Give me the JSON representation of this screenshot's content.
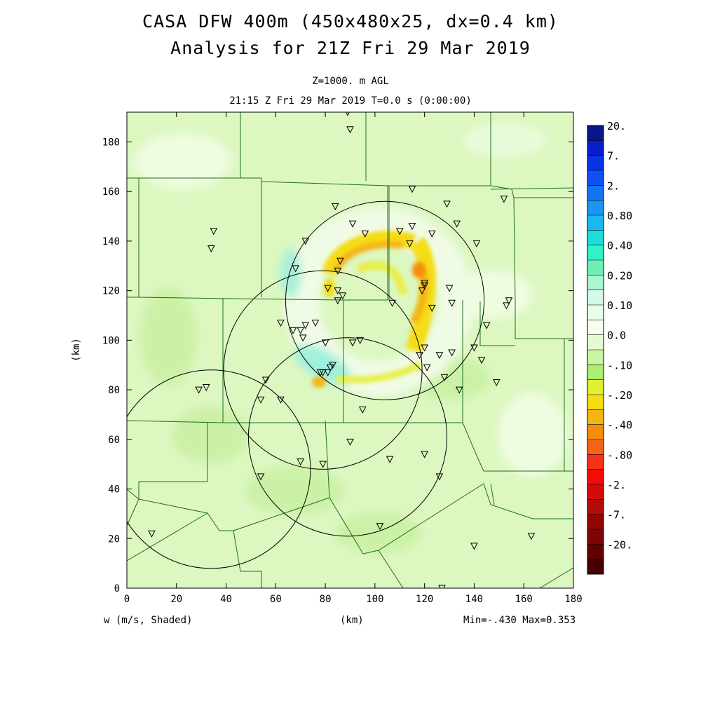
{
  "titles": {
    "line1": "CASA DFW 400m (450x480x25, dx=0.4 km)",
    "line2": "Analysis for 21Z Fri 29 Mar 2019",
    "level": "Z=1000. m AGL",
    "time": "21:15 Z Fri 29 Mar 2019    T=0.0 s (0:00:00)"
  },
  "footer": {
    "field_label": "w (m/s, Shaded)",
    "min_max": "Min=-.430 Max=0.353"
  },
  "chart_data": {
    "type": "heatmap",
    "field": "w",
    "units": "m/s",
    "xlabel": "(km)",
    "ylabel": "(km)",
    "xlim": [
      0,
      180
    ],
    "ylim": [
      0,
      192
    ],
    "xticks": [
      0,
      20,
      40,
      60,
      80,
      100,
      120,
      140,
      160,
      180
    ],
    "yticks": [
      0,
      20,
      40,
      60,
      80,
      100,
      120,
      140,
      160,
      180
    ],
    "min": -0.43,
    "max": 0.353,
    "colorbar": {
      "labels": [
        "20.",
        "7.",
        "2.",
        "0.80",
        "0.40",
        "0.20",
        "0.10",
        "0.0",
        "-.10",
        "-.20",
        "-.40",
        "-.80",
        "-2.",
        "-7.",
        "-20."
      ],
      "colors": [
        "#0a148c",
        "#0a1ec8",
        "#0a32e6",
        "#0f50f5",
        "#1473f5",
        "#1996f0",
        "#19b9f0",
        "#1edcdc",
        "#32f0c8",
        "#6ef0b4",
        "#aaf5d2",
        "#d2fae6",
        "#eafcea",
        "#f5fff0",
        "#e6fad2",
        "#c8f5a0",
        "#aaf06e",
        "#e1f032",
        "#f5dc14",
        "#f5b414",
        "#f58c0a",
        "#f56414",
        "#f53214",
        "#f50a0a",
        "#d20a0a",
        "#b40a0a",
        "#960505",
        "#7d0505",
        "#640000",
        "#460000"
      ]
    },
    "radar_rings": [
      {
        "center": [
          104,
          116
        ],
        "radius": 40
      },
      {
        "center": [
          79,
          88
        ],
        "radius": 40
      },
      {
        "center": [
          89,
          61
        ],
        "radius": 40
      },
      {
        "center": [
          34,
          48
        ],
        "radius": 40
      }
    ],
    "stations": [
      [
        89,
        192
      ],
      [
        90,
        185
      ],
      [
        115,
        161
      ],
      [
        129,
        155
      ],
      [
        152,
        157
      ],
      [
        84,
        154
      ],
      [
        91,
        147
      ],
      [
        96,
        143
      ],
      [
        110,
        144
      ],
      [
        115,
        146
      ],
      [
        123,
        143
      ],
      [
        133,
        147
      ],
      [
        141,
        139
      ],
      [
        35,
        144
      ],
      [
        34,
        137
      ],
      [
        72,
        140
      ],
      [
        114,
        139
      ],
      [
        68,
        129
      ],
      [
        86,
        132
      ],
      [
        85,
        128
      ],
      [
        81,
        121
      ],
      [
        85,
        120
      ],
      [
        87,
        118
      ],
      [
        85,
        116
      ],
      [
        119,
        120
      ],
      [
        120,
        123
      ],
      [
        120,
        122
      ],
      [
        130,
        121
      ],
      [
        107,
        115
      ],
      [
        131,
        115
      ],
      [
        123,
        113
      ],
      [
        154,
        116
      ],
      [
        153,
        114
      ],
      [
        62,
        107
      ],
      [
        72,
        106
      ],
      [
        70,
        104
      ],
      [
        67,
        104
      ],
      [
        76,
        107
      ],
      [
        71,
        101
      ],
      [
        145,
        106
      ],
      [
        80,
        99
      ],
      [
        91,
        99
      ],
      [
        94,
        100
      ],
      [
        120,
        97
      ],
      [
        118,
        94
      ],
      [
        126,
        94
      ],
      [
        131,
        95
      ],
      [
        140,
        97
      ],
      [
        143,
        92
      ],
      [
        121,
        89
      ],
      [
        128,
        85
      ],
      [
        78,
        87
      ],
      [
        79,
        87
      ],
      [
        81,
        87
      ],
      [
        82,
        89
      ],
      [
        83,
        90
      ],
      [
        149,
        83
      ],
      [
        134,
        80
      ],
      [
        29,
        80
      ],
      [
        32,
        81
      ],
      [
        56,
        84
      ],
      [
        54,
        76
      ],
      [
        62,
        76
      ],
      [
        95,
        72
      ],
      [
        90,
        59
      ],
      [
        106,
        52
      ],
      [
        120,
        54
      ],
      [
        70,
        51
      ],
      [
        79,
        50
      ],
      [
        54,
        45
      ],
      [
        126,
        45
      ],
      [
        10,
        22
      ],
      [
        102,
        25
      ],
      [
        140,
        17
      ],
      [
        163,
        21
      ],
      [
        127,
        0
      ]
    ]
  }
}
